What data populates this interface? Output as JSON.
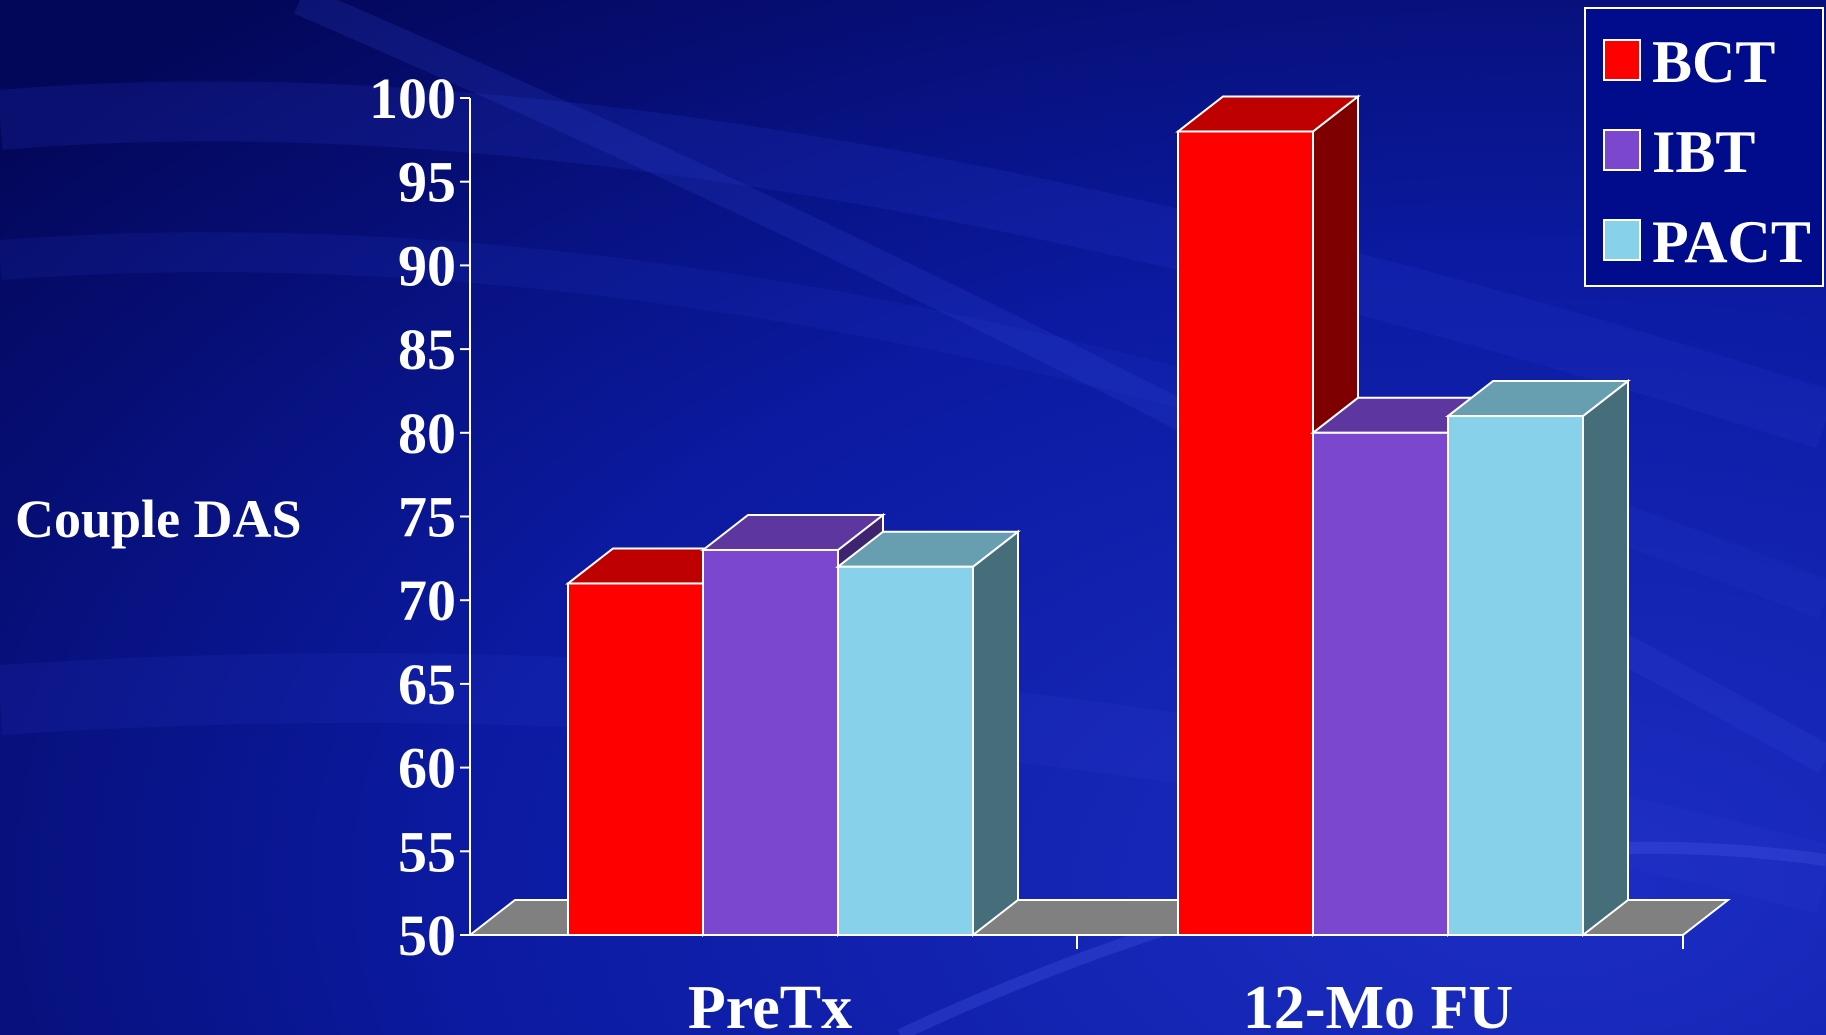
{
  "chart_data": {
    "type": "bar",
    "categories": [
      "PreTx",
      "12-Mo FU"
    ],
    "series": [
      {
        "name": "BCT",
        "values": [
          71,
          98
        ],
        "color": "#ff0000",
        "top": "#bf0000",
        "side": "#7f0000"
      },
      {
        "name": "IBT",
        "values": [
          73,
          80
        ],
        "color": "#7b47cf",
        "top": "#5d36a0",
        "side": "#3e2470"
      },
      {
        "name": "PACT",
        "values": [
          72,
          81
        ],
        "color": "#87d1ea",
        "top": "#689fb0",
        "side": "#466d7a"
      }
    ],
    "ylabel": "Couple DAS",
    "ylim": [
      50,
      100
    ],
    "yticks": [
      "50",
      "55",
      "60",
      "65",
      "70",
      "75",
      "80",
      "85",
      "90",
      "95",
      "100"
    ],
    "legend_position": "top-right",
    "grid": false,
    "floor_color": "#808080",
    "background_color": "#000c8c"
  }
}
